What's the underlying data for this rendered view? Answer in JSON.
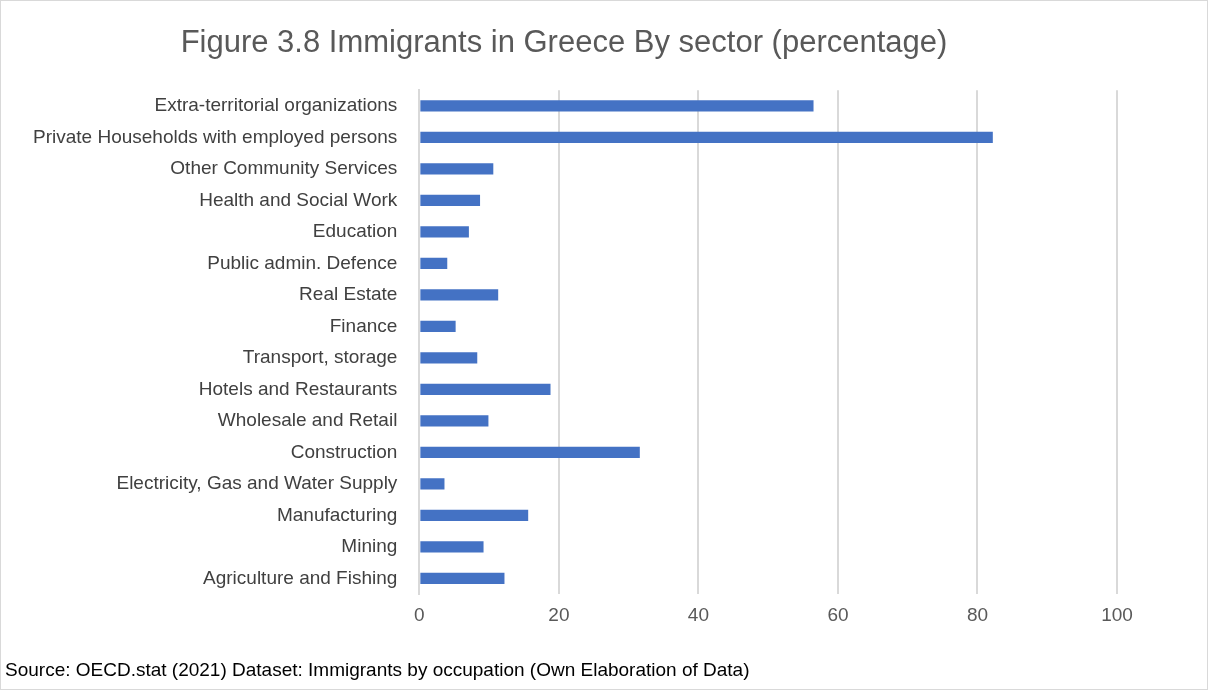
{
  "chart_data": {
    "type": "bar",
    "orientation": "horizontal",
    "title": "Figure 3.8 Immigrants in Greece By sector (percentage)",
    "categories": [
      "Extra-territorial organizations",
      "Private Households with employed persons",
      "Other Community Services",
      "Health and Social Work",
      "Education",
      "Public admin. Defence",
      "Real Estate",
      "Finance",
      "Transport, storage",
      "Hotels and Restaurants",
      "Wholesale and Retail",
      "Construction",
      "Electricity, Gas and Water Supply",
      "Manufacturing",
      "Mining",
      "Agriculture and Fishing"
    ],
    "values": [
      56.5,
      82.2,
      10.6,
      8.7,
      7.1,
      4.0,
      11.3,
      5.2,
      8.3,
      18.8,
      9.9,
      31.6,
      3.6,
      15.6,
      9.2,
      12.2
    ],
    "color": "#4472c4",
    "xlim": [
      0,
      100
    ],
    "xticks": [
      0,
      20,
      40,
      60,
      80,
      100
    ],
    "grid": "x",
    "legend": false,
    "annotations": [
      "Source: OECD.stat (2021) Dataset: Immigrants by occupation (Own Elaboration of Data)"
    ]
  }
}
